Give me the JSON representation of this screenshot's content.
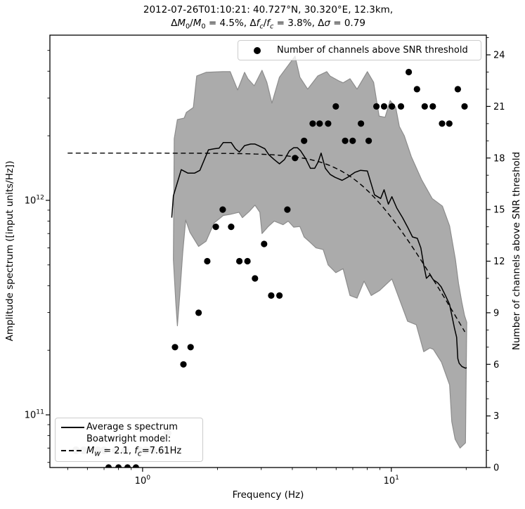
{
  "title": {
    "line1": "2012-07-26T01:10:21: 40.727°N, 30.320°E, 12.3km,",
    "line2_segments": [
      {
        "t": "Δ"
      },
      {
        "t": "M",
        "i": 1
      },
      {
        "t": "0",
        "s": 1
      },
      {
        "t": "/"
      },
      {
        "t": "M",
        "i": 1
      },
      {
        "t": "0",
        "s": 1
      },
      {
        "t": " = 4.5%, Δ"
      },
      {
        "t": "f",
        "i": 1
      },
      {
        "t": "c",
        "s": 1,
        "i": 1
      },
      {
        "t": "/"
      },
      {
        "t": "f",
        "i": 1
      },
      {
        "t": "c",
        "s": 1,
        "i": 1
      },
      {
        "t": " = 3.8%, Δ"
      },
      {
        "t": "σ",
        "i": 1
      },
      {
        "t": " = 0.79"
      }
    ]
  },
  "axes": {
    "x_label": "Frequency (Hz)",
    "left_label": "Amplitude spectrum ([input units/Hz])",
    "right_label": "Number of channels above SNR threshold"
  },
  "legend_channels": {
    "label": "Number of channels above SNR threshold"
  },
  "legend_spectrum": {
    "item1": "Average s spectrum",
    "item2_line1": "Boatwright model:",
    "item2_line2_segments": [
      {
        "t": "M",
        "i": 1
      },
      {
        "t": "w",
        "s": 1,
        "i": 1
      },
      {
        "t": " = 2.1, "
      },
      {
        "t": "f",
        "i": 1
      },
      {
        "t": "c",
        "s": 1,
        "i": 1
      },
      {
        "t": "=7.61Hz"
      }
    ]
  },
  "chart_data": {
    "type": "line+scatter+band",
    "title": "2012-07-26T01:10:21: 40.727N, 30.320E, 12.3km, dM0/M0 = 4.5%, dfc/fc = 3.8%, dsigma = 0.79",
    "x_axis": {
      "label": "Frequency (Hz)",
      "scale": "log",
      "min": 0.424,
      "max": 24.1,
      "major_ticks": [
        1,
        10
      ]
    },
    "y_left_axis": {
      "label": "Amplitude spectrum ([input units/Hz])",
      "scale": "log",
      "min": 56800000000.0,
      "max": 5890000000000.0,
      "major_ticks": [
        100000000000.0,
        1000000000000.0
      ]
    },
    "y_right_axis": {
      "label": "Number of channels above SNR threshold",
      "scale": "linear",
      "min": 0,
      "max": 25.145,
      "major_ticks": [
        0,
        3,
        6,
        9,
        12,
        15,
        18,
        21,
        24
      ],
      "minor_step": 1
    },
    "grid": false,
    "series": {
      "uncertainty_band": {
        "type": "area",
        "fill": "#ababab",
        "edge": "#8c8c8c",
        "upper": [
          [
            1.34,
            1940000000000.0
          ],
          [
            1.38,
            2380000000000.0
          ],
          [
            1.47,
            2420000000000.0
          ],
          [
            1.5,
            2570000000000.0
          ],
          [
            1.6,
            2710000000000.0
          ],
          [
            1.65,
            3800000000000.0
          ],
          [
            1.8,
            3950000000000.0
          ],
          [
            2.1,
            3980000000000.0
          ],
          [
            2.25,
            3980000000000.0
          ],
          [
            2.41,
            3270000000000.0
          ],
          [
            2.57,
            3950000000000.0
          ],
          [
            2.65,
            3690000000000.0
          ],
          [
            2.81,
            3420000000000.0
          ],
          [
            3.02,
            4040000000000.0
          ],
          [
            3.16,
            3550000000000.0
          ],
          [
            3.31,
            2840000000000.0
          ],
          [
            3.55,
            3750000000000.0
          ],
          [
            4.1,
            4700000000000.0
          ],
          [
            4.29,
            3750000000000.0
          ],
          [
            4.61,
            3300000000000.0
          ],
          [
            5.06,
            3800000000000.0
          ],
          [
            5.5,
            3980000000000.0
          ],
          [
            5.67,
            3800000000000.0
          ],
          [
            6.14,
            3610000000000.0
          ],
          [
            6.4,
            3530000000000.0
          ],
          [
            6.82,
            3690000000000.0
          ],
          [
            7.28,
            3300000000000.0
          ],
          [
            8.01,
            3980000000000.0
          ],
          [
            8.49,
            3550000000000.0
          ],
          [
            8.93,
            2470000000000.0
          ],
          [
            9.44,
            2440000000000.0
          ],
          [
            9.89,
            2920000000000.0
          ],
          [
            10.42,
            2710000000000.0
          ],
          [
            10.77,
            2210000000000.0
          ],
          [
            11.27,
            2000000000000.0
          ],
          [
            12.03,
            1600000000000.0
          ],
          [
            13.23,
            1250000000000.0
          ],
          [
            14.59,
            1020000000000.0
          ],
          [
            16.05,
            940000000000.0
          ],
          [
            17.15,
            760000000000.0
          ],
          [
            18.1,
            530000000000.0
          ],
          [
            18.63,
            410000000000.0
          ],
          [
            19.2,
            335000000000.0
          ],
          [
            19.7,
            290000000000.0
          ],
          [
            20.1,
            270000000000.0
          ]
        ],
        "lower": [
          [
            1.33,
            530000000000.0
          ],
          [
            1.36,
            335000000000.0
          ],
          [
            1.38,
            260000000000.0
          ],
          [
            1.41,
            360000000000.0
          ],
          [
            1.45,
            570000000000.0
          ],
          [
            1.49,
            810000000000.0
          ],
          [
            1.55,
            710000000000.0
          ],
          [
            1.68,
            610000000000.0
          ],
          [
            1.8,
            645000000000.0
          ],
          [
            1.94,
            785000000000.0
          ],
          [
            2.11,
            850000000000.0
          ],
          [
            2.25,
            860000000000.0
          ],
          [
            2.44,
            880000000000.0
          ],
          [
            2.52,
            830000000000.0
          ],
          [
            2.69,
            890000000000.0
          ],
          [
            2.83,
            950000000000.0
          ],
          [
            2.96,
            880000000000.0
          ],
          [
            3.02,
            700000000000.0
          ],
          [
            3.2,
            755000000000.0
          ],
          [
            3.38,
            800000000000.0
          ],
          [
            3.67,
            770000000000.0
          ],
          [
            3.85,
            800000000000.0
          ],
          [
            4.05,
            750000000000.0
          ],
          [
            4.29,
            755000000000.0
          ],
          [
            4.46,
            675000000000.0
          ],
          [
            4.73,
            635000000000.0
          ],
          [
            4.98,
            600000000000.0
          ],
          [
            5.32,
            590000000000.0
          ],
          [
            5.57,
            500000000000.0
          ],
          [
            5.98,
            460000000000.0
          ],
          [
            6.4,
            480000000000.0
          ],
          [
            6.82,
            360000000000.0
          ],
          [
            7.28,
            350000000000.0
          ],
          [
            7.77,
            420000000000.0
          ],
          [
            8.3,
            360000000000.0
          ],
          [
            8.97,
            380000000000.0
          ],
          [
            10.05,
            430000000000.0
          ],
          [
            11.63,
            273000000000.0
          ],
          [
            12.6,
            263000000000.0
          ],
          [
            13.5,
            197000000000.0
          ],
          [
            14.3,
            205000000000.0
          ],
          [
            14.76,
            202000000000.0
          ],
          [
            15.9,
            176000000000.0
          ],
          [
            17.15,
            138000000000.0
          ],
          [
            17.5,
            93000000000.0
          ],
          [
            18.05,
            77000000000.0
          ],
          [
            18.9,
            70000000000.0
          ],
          [
            19.87,
            74000000000.0
          ]
        ]
      },
      "average_spectrum": {
        "name": "Average s spectrum",
        "type": "line",
        "style": "solid",
        "color": "#000000",
        "width": 1.5,
        "points": [
          [
            1.31,
            830000000000.0
          ],
          [
            1.33,
            1050000000000.0
          ],
          [
            1.43,
            1390000000000.0
          ],
          [
            1.52,
            1340000000000.0
          ],
          [
            1.62,
            1340000000000.0
          ],
          [
            1.7,
            1380000000000.0
          ],
          [
            1.84,
            1720000000000.0
          ],
          [
            1.94,
            1740000000000.0
          ],
          [
            2.03,
            1750000000000.0
          ],
          [
            2.11,
            1860000000000.0
          ],
          [
            2.27,
            1860000000000.0
          ],
          [
            2.36,
            1740000000000.0
          ],
          [
            2.45,
            1680000000000.0
          ],
          [
            2.57,
            1800000000000.0
          ],
          [
            2.72,
            1830000000000.0
          ],
          [
            2.83,
            1830000000000.0
          ],
          [
            2.92,
            1800000000000.0
          ],
          [
            3.1,
            1740000000000.0
          ],
          [
            3.22,
            1630000000000.0
          ],
          [
            3.38,
            1550000000000.0
          ],
          [
            3.55,
            1480000000000.0
          ],
          [
            3.72,
            1550000000000.0
          ],
          [
            3.89,
            1700000000000.0
          ],
          [
            4.05,
            1760000000000.0
          ],
          [
            4.19,
            1760000000000.0
          ],
          [
            4.32,
            1700000000000.0
          ],
          [
            4.52,
            1570000000000.0
          ],
          [
            4.73,
            1410000000000.0
          ],
          [
            4.92,
            1410000000000.0
          ],
          [
            5.08,
            1510000000000.0
          ],
          [
            5.22,
            1660000000000.0
          ],
          [
            5.43,
            1410000000000.0
          ],
          [
            5.68,
            1320000000000.0
          ],
          [
            5.94,
            1280000000000.0
          ],
          [
            6.34,
            1240000000000.0
          ],
          [
            6.67,
            1280000000000.0
          ],
          [
            7.13,
            1350000000000.0
          ],
          [
            7.51,
            1380000000000.0
          ],
          [
            8.01,
            1370000000000.0
          ],
          [
            8.56,
            1060000000000.0
          ],
          [
            9.06,
            1020000000000.0
          ],
          [
            9.35,
            1120000000000.0
          ],
          [
            9.73,
            960000000000.0
          ],
          [
            10.05,
            1040000000000.0
          ],
          [
            10.52,
            920000000000.0
          ],
          [
            11.1,
            830000000000.0
          ],
          [
            11.63,
            750000000000.0
          ],
          [
            12.16,
            675000000000.0
          ],
          [
            12.72,
            665000000000.0
          ],
          [
            13.14,
            600000000000.0
          ],
          [
            13.5,
            500000000000.0
          ],
          [
            13.84,
            433000000000.0
          ],
          [
            14.3,
            450000000000.0
          ],
          [
            14.76,
            426000000000.0
          ],
          [
            15.35,
            413000000000.0
          ],
          [
            15.86,
            395000000000.0
          ],
          [
            16.5,
            360000000000.0
          ],
          [
            17.15,
            327000000000.0
          ],
          [
            17.5,
            292000000000.0
          ],
          [
            17.95,
            253000000000.0
          ],
          [
            18.3,
            230000000000.0
          ],
          [
            18.5,
            183000000000.0
          ],
          [
            18.74,
            174000000000.0
          ],
          [
            19.22,
            168000000000.0
          ],
          [
            19.87,
            165000000000.0
          ],
          [
            20.1,
            166000000000.0
          ]
        ]
      },
      "boatwright_model": {
        "name": "Boatwright model: Mw = 2.1, fc=7.61Hz",
        "type": "line",
        "style": "dashed",
        "color": "#000000",
        "width": 1.4,
        "dash": "7,4.5",
        "Mw": 2.1,
        "corner_frequency_hz": 7.61,
        "plateau": 1660000000000.0,
        "gamma": 2,
        "f_start": 0.5,
        "f_end": 19.75
      },
      "channel_counts": {
        "name": "Number of channels above SNR threshold",
        "type": "scatter",
        "color": "#000000",
        "radius": 4.6,
        "y_axis": "right",
        "points": [
          [
            0.73,
            0
          ],
          [
            0.8,
            0
          ],
          [
            0.87,
            0
          ],
          [
            0.94,
            0
          ],
          [
            1.35,
            7
          ],
          [
            1.46,
            6
          ],
          [
            1.56,
            7
          ],
          [
            1.68,
            9
          ],
          [
            1.82,
            12
          ],
          [
            1.97,
            14
          ],
          [
            2.1,
            15
          ],
          [
            2.27,
            14
          ],
          [
            2.45,
            12
          ],
          [
            2.64,
            12
          ],
          [
            2.83,
            11
          ],
          [
            3.08,
            13
          ],
          [
            3.29,
            10
          ],
          [
            3.55,
            10
          ],
          [
            3.82,
            15
          ],
          [
            4.1,
            18
          ],
          [
            4.46,
            19
          ],
          [
            4.83,
            20
          ],
          [
            5.15,
            20
          ],
          [
            5.57,
            20
          ],
          [
            5.98,
            21
          ],
          [
            6.52,
            19
          ],
          [
            6.99,
            19
          ],
          [
            7.55,
            20
          ],
          [
            8.11,
            19
          ],
          [
            8.71,
            21
          ],
          [
            9.35,
            21
          ],
          [
            10.06,
            21
          ],
          [
            10.93,
            21
          ],
          [
            11.75,
            23
          ],
          [
            12.68,
            22
          ],
          [
            13.62,
            21
          ],
          [
            14.68,
            21
          ],
          [
            16.0,
            20
          ],
          [
            17.1,
            20
          ],
          [
            18.5,
            22
          ],
          [
            19.7,
            21
          ]
        ]
      },
      "low_count_gray_dots": {
        "type": "scatter",
        "color": "#c6c6c6",
        "radius": 5.5,
        "y_axis": "right",
        "points": [
          [
            0.54,
            1
          ],
          [
            0.58,
            1
          ],
          [
            0.66,
            1
          ],
          [
            0.7,
            1
          ],
          [
            0.78,
            1
          ],
          [
            0.85,
            1
          ],
          [
            0.97,
            1
          ],
          [
            1.03,
            1
          ],
          [
            1.1,
            1
          ],
          [
            1.19,
            1
          ],
          [
            1.26,
            2
          ]
        ]
      }
    },
    "legend_top_right": "Number of channels above SNR threshold",
    "legend_bottom_left": [
      "Average s spectrum",
      "Boatwright model: Mw = 2.1, fc=7.61Hz"
    ]
  }
}
